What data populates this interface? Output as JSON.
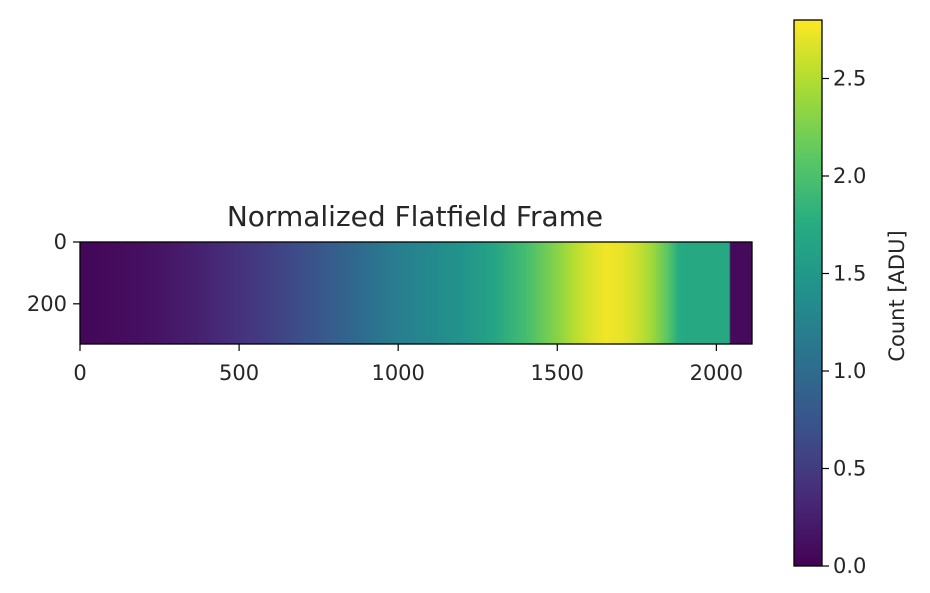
{
  "chart_data": {
    "type": "heatmap",
    "title": "Normalized Flatfield Frame",
    "xlim": [
      0,
      2112
    ],
    "ylim": [
      330,
      0
    ],
    "x_ticks": [
      0,
      500,
      1000,
      1500,
      2000
    ],
    "y_ticks": [
      0,
      200
    ],
    "grid": false,
    "colormap": "viridis",
    "colorbar": {
      "label": "Count [ADU]",
      "range": [
        0.0,
        2.8
      ],
      "ticks": [
        "0.0",
        "0.5",
        "1.0",
        "1.5",
        "2.0",
        "2.5"
      ]
    },
    "column_profile": {
      "x": [
        0,
        100,
        200,
        300,
        400,
        500,
        600,
        700,
        800,
        900,
        1000,
        1100,
        1200,
        1300,
        1400,
        1500,
        1550,
        1600,
        1650,
        1700,
        1750,
        1800,
        1850,
        1880,
        1900,
        2000,
        2040,
        2045,
        2112
      ],
      "values": [
        0.05,
        0.08,
        0.13,
        0.2,
        0.3,
        0.42,
        0.54,
        0.68,
        0.85,
        1.03,
        1.2,
        1.32,
        1.45,
        1.65,
        1.95,
        2.3,
        2.5,
        2.65,
        2.75,
        2.72,
        2.6,
        2.4,
        2.05,
        1.75,
        1.72,
        1.7,
        1.7,
        0.08,
        0.08
      ]
    }
  }
}
